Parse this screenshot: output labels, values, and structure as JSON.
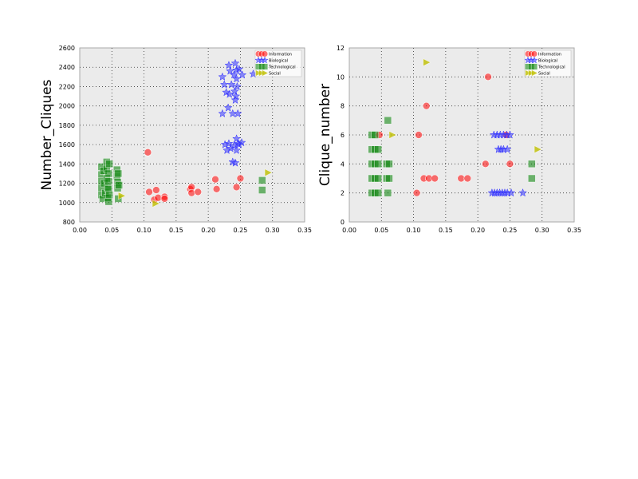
{
  "chart_data": [
    {
      "type": "scatter",
      "xlabel": "",
      "ylabel": "Number_Cliques",
      "xlim": [
        0,
        0.35
      ],
      "ylim": [
        800,
        2600
      ],
      "xticks": [
        "0.00",
        "0.05",
        "0.10",
        "0.15",
        "0.20",
        "0.25",
        "0.30",
        "0.35"
      ],
      "yticks": [
        "800",
        "1000",
        "1200",
        "1400",
        "1600",
        "1800",
        "2000",
        "2200",
        "2400",
        "2600"
      ],
      "grid": true,
      "legend_position": "top-right",
      "series": [
        {
          "name": "Information",
          "marker": "circle",
          "color": "#ff0000",
          "points": [
            [
              0.106,
              1520
            ],
            [
              0.108,
              1110
            ],
            [
              0.116,
              1030
            ],
            [
              0.119,
              1130
            ],
            [
              0.122,
              1050
            ],
            [
              0.132,
              1060
            ],
            [
              0.132,
              1040
            ],
            [
              0.172,
              1140
            ],
            [
              0.174,
              1160
            ],
            [
              0.174,
              1100
            ],
            [
              0.184,
              1110
            ],
            [
              0.211,
              1240
            ],
            [
              0.213,
              1140
            ],
            [
              0.244,
              1160
            ],
            [
              0.25,
              1250
            ]
          ]
        },
        {
          "name": "Biological",
          "marker": "star",
          "color": "#3333ff",
          "points": [
            [
              0.222,
              2300
            ],
            [
              0.225,
              2220
            ],
            [
              0.228,
              2140
            ],
            [
              0.231,
              1980
            ],
            [
              0.232,
              2420
            ],
            [
              0.233,
              2120
            ],
            [
              0.234,
              2360
            ],
            [
              0.236,
              2220
            ],
            [
              0.238,
              1920
            ],
            [
              0.24,
              2320
            ],
            [
              0.241,
              2150
            ],
            [
              0.242,
              2060
            ],
            [
              0.242,
              2440
            ],
            [
              0.243,
              2100
            ],
            [
              0.244,
              2370
            ],
            [
              0.244,
              2280
            ],
            [
              0.245,
              2200
            ],
            [
              0.246,
              1920
            ],
            [
              0.248,
              2380
            ],
            [
              0.253,
              2320
            ],
            [
              0.27,
              2330
            ],
            [
              0.222,
              1920
            ],
            [
              0.226,
              1600
            ],
            [
              0.229,
              1540
            ],
            [
              0.232,
              1610
            ],
            [
              0.235,
              1560
            ],
            [
              0.238,
              1420
            ],
            [
              0.24,
              1590
            ],
            [
              0.242,
              1410
            ],
            [
              0.244,
              1660
            ],
            [
              0.244,
              1540
            ],
            [
              0.246,
              1610
            ],
            [
              0.248,
              1600
            ],
            [
              0.252,
              1620
            ]
          ]
        },
        {
          "name": "Technological",
          "marker": "square",
          "color": "#008000",
          "points": [
            [
              0.034,
              1370
            ],
            [
              0.034,
              1290
            ],
            [
              0.034,
              1220
            ],
            [
              0.034,
              1150
            ],
            [
              0.034,
              1080
            ],
            [
              0.036,
              1040
            ],
            [
              0.037,
              1330
            ],
            [
              0.038,
              1200
            ],
            [
              0.04,
              1100
            ],
            [
              0.042,
              1420
            ],
            [
              0.042,
              1350
            ],
            [
              0.042,
              1250
            ],
            [
              0.043,
              1160
            ],
            [
              0.043,
              1050
            ],
            [
              0.045,
              1300
            ],
            [
              0.045,
              1220
            ],
            [
              0.045,
              1140
            ],
            [
              0.045,
              1010
            ],
            [
              0.046,
              1400
            ],
            [
              0.046,
              1080
            ],
            [
              0.058,
              1340
            ],
            [
              0.058,
              1270
            ],
            [
              0.059,
              1210
            ],
            [
              0.059,
              1150
            ],
            [
              0.06,
              1040
            ],
            [
              0.06,
              1300
            ],
            [
              0.061,
              1180
            ],
            [
              0.284,
              1230
            ],
            [
              0.284,
              1130
            ]
          ]
        },
        {
          "name": "Social",
          "marker": "triangle-right",
          "color": "#bfbf00",
          "points": [
            [
              0.065,
              1070
            ],
            [
              0.118,
              990
            ],
            [
              0.293,
              1310
            ]
          ]
        }
      ]
    },
    {
      "type": "scatter",
      "xlabel": "",
      "ylabel": "Clique_number",
      "xlim": [
        0,
        0.35
      ],
      "ylim": [
        0,
        12
      ],
      "xticks": [
        "0.00",
        "0.05",
        "0.10",
        "0.15",
        "0.20",
        "0.25",
        "0.30",
        "0.35"
      ],
      "yticks": [
        "0",
        "2",
        "4",
        "6",
        "8",
        "10",
        "12"
      ],
      "grid": true,
      "legend_position": "top-right",
      "series": [
        {
          "name": "Information",
          "marker": "circle",
          "color": "#ff0000",
          "points": [
            [
              0.047,
              6
            ],
            [
              0.105,
              2
            ],
            [
              0.108,
              6
            ],
            [
              0.12,
              8
            ],
            [
              0.116,
              3
            ],
            [
              0.124,
              3
            ],
            [
              0.133,
              3
            ],
            [
              0.174,
              3
            ],
            [
              0.184,
              3
            ],
            [
              0.212,
              4
            ],
            [
              0.216,
              10
            ],
            [
              0.244,
              6
            ],
            [
              0.25,
              4
            ]
          ]
        },
        {
          "name": "Biological",
          "marker": "star",
          "color": "#3333ff",
          "points": [
            [
              0.225,
              6
            ],
            [
              0.23,
              6
            ],
            [
              0.235,
              6
            ],
            [
              0.24,
              6
            ],
            [
              0.245,
              6
            ],
            [
              0.25,
              6
            ],
            [
              0.232,
              5
            ],
            [
              0.236,
              5
            ],
            [
              0.24,
              5
            ],
            [
              0.246,
              5
            ],
            [
              0.222,
              2
            ],
            [
              0.226,
              2
            ],
            [
              0.23,
              2
            ],
            [
              0.234,
              2
            ],
            [
              0.238,
              2
            ],
            [
              0.242,
              2
            ],
            [
              0.246,
              2
            ],
            [
              0.252,
              2
            ],
            [
              0.27,
              2
            ]
          ]
        },
        {
          "name": "Technological",
          "marker": "square",
          "color": "#008000",
          "points": [
            [
              0.035,
              6
            ],
            [
              0.04,
              6
            ],
            [
              0.035,
              5
            ],
            [
              0.04,
              5
            ],
            [
              0.045,
              5
            ],
            [
              0.035,
              4
            ],
            [
              0.04,
              4
            ],
            [
              0.045,
              4
            ],
            [
              0.058,
              4
            ],
            [
              0.062,
              4
            ],
            [
              0.035,
              3
            ],
            [
              0.04,
              3
            ],
            [
              0.045,
              3
            ],
            [
              0.058,
              3
            ],
            [
              0.062,
              3
            ],
            [
              0.035,
              2
            ],
            [
              0.04,
              2
            ],
            [
              0.045,
              2
            ],
            [
              0.06,
              7
            ],
            [
              0.06,
              2
            ],
            [
              0.284,
              4
            ],
            [
              0.284,
              3
            ]
          ]
        },
        {
          "name": "Social",
          "marker": "triangle-right",
          "color": "#bfbf00",
          "points": [
            [
              0.067,
              6
            ],
            [
              0.12,
              11
            ],
            [
              0.293,
              5
            ]
          ]
        }
      ]
    }
  ]
}
